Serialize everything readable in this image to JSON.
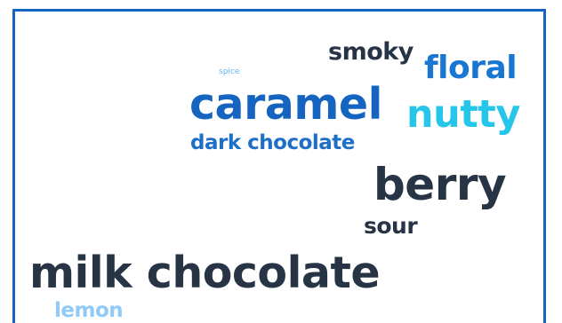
{
  "word_cloud": {
    "words": [
      {
        "text": "smoky",
        "color": "#263445"
      },
      {
        "text": "floral",
        "color": "#1976d2"
      },
      {
        "text": "spice",
        "color": "#64b5f6"
      },
      {
        "text": "caramel",
        "color": "#1565c0"
      },
      {
        "text": "nutty",
        "color": "#26c6ea"
      },
      {
        "text": "dark chocolate",
        "color": "#1e6fc8"
      },
      {
        "text": "berry",
        "color": "#263445"
      },
      {
        "text": "sour",
        "color": "#263445"
      },
      {
        "text": "milk chocolate",
        "color": "#263445"
      },
      {
        "text": "lemon",
        "color": "#90caf9"
      }
    ]
  }
}
